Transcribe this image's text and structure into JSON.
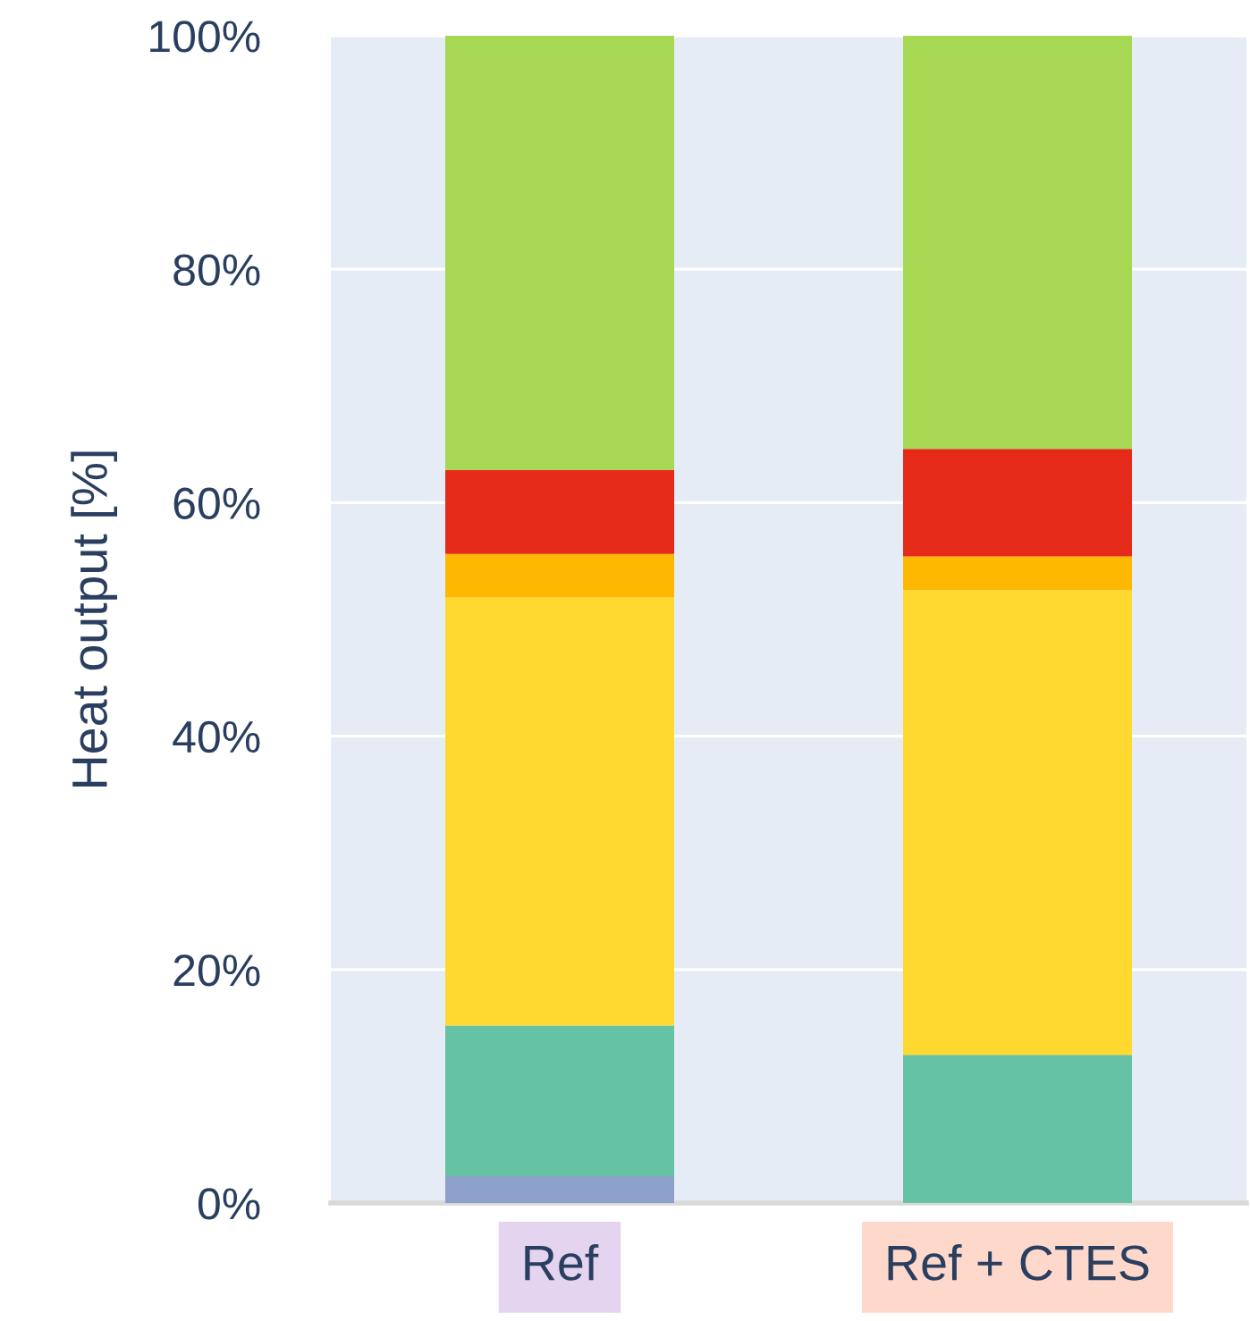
{
  "chart_data": {
    "type": "bar",
    "stacked": true,
    "ylabel": "Heat output [%]",
    "categories": [
      "Ref",
      "Ref + CTES"
    ],
    "series": [
      {
        "color": "#8da0cb",
        "values": [
          2.3,
          0
        ]
      },
      {
        "color": "#66c2a5",
        "values": [
          12.9,
          12.7
        ]
      },
      {
        "color": "#ffd92f",
        "values": [
          36.7,
          39.8
        ]
      },
      {
        "color": "#ffb800",
        "values": [
          3.7,
          2.9
        ]
      },
      {
        "color": "#e62a19",
        "values": [
          7.2,
          9.2
        ]
      },
      {
        "color": "#a6d854",
        "values": [
          37.2,
          35.4
        ]
      }
    ],
    "ylim": [
      0,
      100
    ],
    "yticks": [
      {
        "value": 0,
        "label": "0%"
      },
      {
        "value": 20,
        "label": "20%"
      },
      {
        "value": 40,
        "label": "40%"
      },
      {
        "value": 60,
        "label": "60%"
      },
      {
        "value": 80,
        "label": "80%"
      },
      {
        "value": 100,
        "label": "100%"
      }
    ],
    "grid": "y"
  }
}
